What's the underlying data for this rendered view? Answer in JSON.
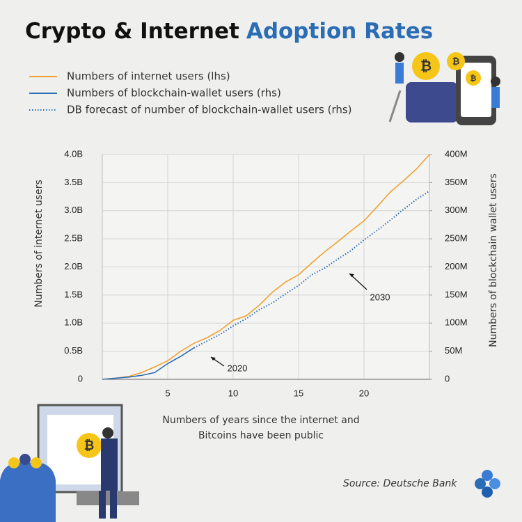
{
  "chart_data": {
    "type": "line",
    "title": "Crypto & Internet",
    "title_highlight": "Adoption Rates",
    "ylabel": "Numbers of internet users",
    "y2label": "Numbers of  blockchain wallet users",
    "xlabel": [
      "Numbers of  years since the internet and",
      "Bitcoins have been public"
    ],
    "source": "Source: Deutsche Bank",
    "annotations": [
      "2020",
      "2030"
    ],
    "x": [
      0,
      1,
      2,
      3,
      4,
      5,
      6,
      7,
      8,
      9,
      10,
      11,
      12,
      13,
      14,
      15,
      16,
      17,
      18,
      19,
      20,
      21,
      22,
      23,
      24,
      25
    ],
    "xlim": [
      0,
      25
    ],
    "xticks": [
      5,
      10,
      15,
      20
    ],
    "ylim": [
      0,
      4
    ],
    "yticks": [
      0,
      {
        "value": 0.5,
        "label": "0.5B"
      },
      {
        "value": 1,
        "label": "1.0B"
      },
      {
        "value": 1.5,
        "label": "1.5B"
      },
      {
        "value": 2,
        "label": "2.0B"
      },
      {
        "value": 2.5,
        "label": "2.5B"
      },
      {
        "value": 3,
        "label": "3.0B"
      },
      {
        "value": 3.5,
        "label": "3.5B"
      },
      {
        "value": 4,
        "label": "4.0B"
      }
    ],
    "y2lim": [
      0,
      400
    ],
    "y2ticks": [
      0,
      {
        "value": 50,
        "label": "50M"
      },
      {
        "value": 100,
        "label": "100M"
      },
      {
        "value": 150,
        "label": "150M"
      },
      {
        "value": 200,
        "label": "200M"
      },
      {
        "value": 250,
        "label": "250M"
      },
      {
        "value": 300,
        "label": "300M"
      },
      {
        "value": 350,
        "label": "350M"
      },
      {
        "value": 400,
        "label": "400M"
      }
    ],
    "grid": true,
    "series": [
      {
        "name": "Numbers of internet users (lhs)",
        "color": "#f0a12f",
        "style": "solid",
        "values": [
          0,
          0.02,
          0.05,
          0.12,
          0.22,
          0.33,
          0.5,
          0.64,
          0.74,
          0.87,
          1.05,
          1.13,
          1.32,
          1.55,
          1.73,
          1.86,
          2.07,
          2.27,
          2.45,
          2.64,
          2.82,
          3.07,
          3.33,
          3.53,
          3.74,
          4.0
        ]
      },
      {
        "name": "Numbers of blockchain-wallet users (rhs)",
        "color": "#2a6db5",
        "style": "solid",
        "axis": "y2",
        "values": [
          0,
          2,
          4,
          7,
          12,
          28,
          41,
          56,
          null,
          null,
          null,
          null,
          null,
          null,
          null,
          null,
          null,
          null,
          null,
          null,
          null,
          null,
          null,
          null,
          null,
          null
        ]
      },
      {
        "name": "DB forecast of number of blockchain-wallet users (rhs)",
        "color": "#2a6db5",
        "style": "dotted",
        "axis": "y2",
        "values": [
          null,
          null,
          null,
          null,
          null,
          null,
          null,
          56,
          68,
          80,
          95,
          108,
          124,
          136,
          152,
          167,
          186,
          198,
          214,
          229,
          248,
          265,
          283,
          302,
          320,
          335
        ]
      }
    ]
  }
}
